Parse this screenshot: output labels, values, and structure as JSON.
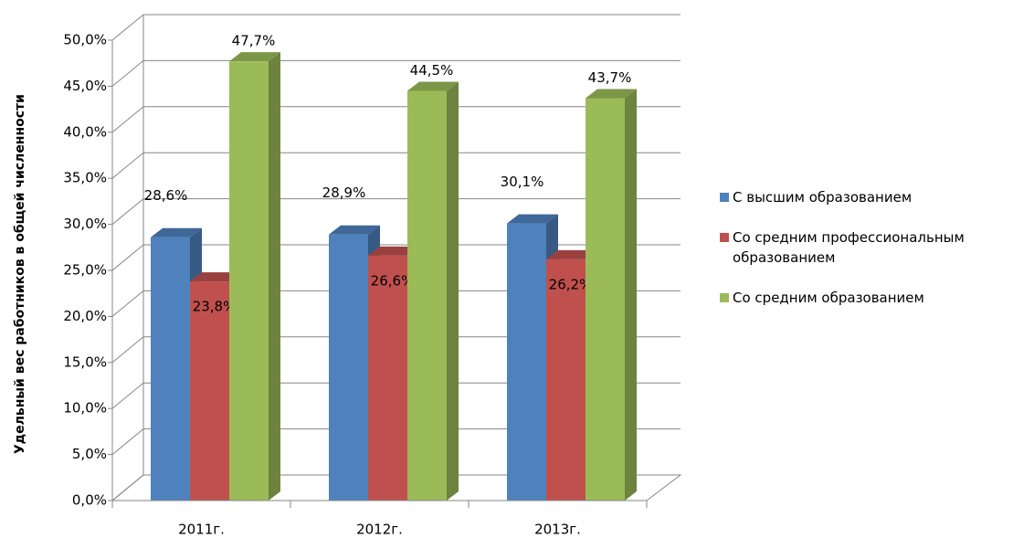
{
  "chart_data": {
    "type": "bar3d",
    "y_label": "Удельный вес работников  в общей численности",
    "categories": [
      "2011г.",
      "2012г.",
      "2013г."
    ],
    "series": [
      {
        "name": "С высшим образованием",
        "color": "#4f81bd",
        "values": [
          28.6,
          28.9,
          30.1
        ],
        "value_labels": [
          "28,6%",
          "28,9%",
          "30,1%"
        ]
      },
      {
        "name": "Со средним профессиональным образованием",
        "color": "#c0504d",
        "values": [
          23.8,
          26.6,
          26.2
        ],
        "value_labels": [
          "23,8%",
          "26,6%",
          "26,2%"
        ]
      },
      {
        "name": "Со средним образованием",
        "color": "#9bbb59",
        "values": [
          47.7,
          44.5,
          43.7
        ],
        "value_labels": [
          "47,7%",
          "44,5%",
          "43,7%"
        ]
      }
    ],
    "ylim": [
      0,
      50
    ],
    "yticks": [
      {
        "value": 0,
        "label": "0,0%"
      },
      {
        "value": 5,
        "label": "5,0%"
      },
      {
        "value": 10,
        "label": "10,0%"
      },
      {
        "value": 15,
        "label": "15,0%"
      },
      {
        "value": 20,
        "label": "20,0%"
      },
      {
        "value": 25,
        "label": "25,0%"
      },
      {
        "value": 30,
        "label": "30,0%"
      },
      {
        "value": 35,
        "label": "35,0%"
      },
      {
        "value": 40,
        "label": "40,0%"
      },
      {
        "value": 45,
        "label": "45,0%"
      },
      {
        "value": 50,
        "label": "50,0%"
      }
    ],
    "grid": true,
    "legend": "right"
  }
}
